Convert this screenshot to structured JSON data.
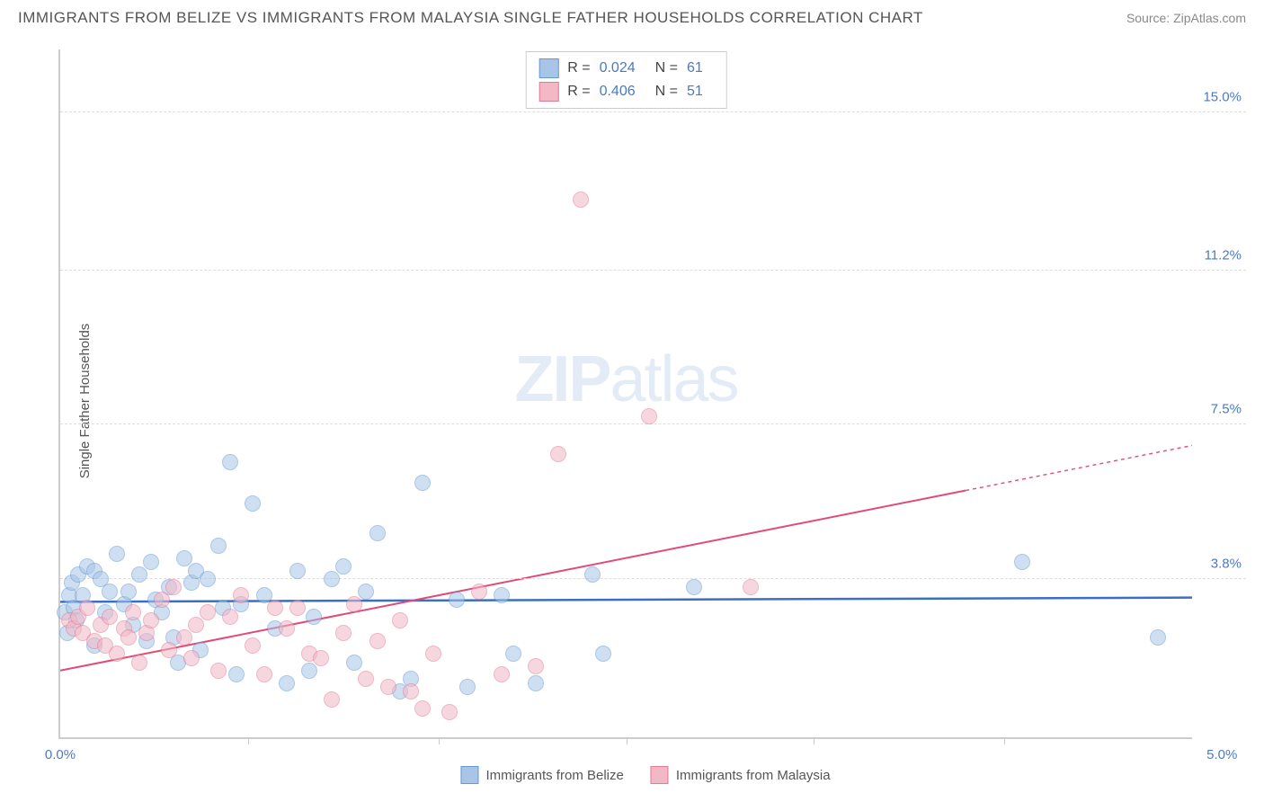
{
  "title": "IMMIGRANTS FROM BELIZE VS IMMIGRANTS FROM MALAYSIA SINGLE FATHER HOUSEHOLDS CORRELATION CHART",
  "source": "Source: ZipAtlas.com",
  "y_axis_label": "Single Father Households",
  "watermark_bold": "ZIP",
  "watermark_light": "atlas",
  "chart": {
    "type": "scatter",
    "background_color": "#ffffff",
    "grid_color": "#dddddd",
    "axis_color": "#cccccc",
    "x_domain": [
      0,
      5.0
    ],
    "y_domain": [
      0,
      16.5
    ],
    "y_ticks": [
      {
        "value": 3.8,
        "label": "3.8%",
        "color": "#4a7ac5"
      },
      {
        "value": 7.5,
        "label": "7.5%",
        "color": "#4a7ac5"
      },
      {
        "value": 11.2,
        "label": "11.2%",
        "color": "#4a7ac5"
      },
      {
        "value": 15.0,
        "label": "15.0%",
        "color": "#4a7ac5"
      }
    ],
    "x_ticks": [
      0.83,
      1.67,
      2.5,
      3.33,
      4.17
    ],
    "x_label_left": {
      "text": "0.0%",
      "color": "#4a7ac5"
    },
    "x_label_right": {
      "text": "5.0%",
      "color": "#4a7ac5"
    },
    "series": [
      {
        "name": "Immigrants from Belize",
        "fill": "#a8c5e8",
        "stroke": "#6799d0",
        "fill_opacity": 0.55,
        "marker_radius": 9,
        "r": "0.024",
        "n": "61",
        "trend": {
          "y_at_x0": 3.25,
          "y_at_xmax": 3.35,
          "color": "#3b6fc4",
          "width": 2.5,
          "extrapolate_from_x": 5.0
        },
        "points": [
          [
            0.02,
            3.0
          ],
          [
            0.04,
            3.4
          ],
          [
            0.05,
            3.7
          ],
          [
            0.06,
            3.1
          ],
          [
            0.08,
            3.9
          ],
          [
            0.1,
            3.4
          ],
          [
            0.12,
            4.1
          ],
          [
            0.03,
            2.5
          ],
          [
            0.15,
            2.2
          ],
          [
            0.15,
            4.0
          ],
          [
            0.18,
            3.8
          ],
          [
            0.2,
            3.0
          ],
          [
            0.22,
            3.5
          ],
          [
            0.25,
            4.4
          ],
          [
            0.28,
            3.2
          ],
          [
            0.3,
            3.5
          ],
          [
            0.32,
            2.7
          ],
          [
            0.35,
            3.9
          ],
          [
            0.38,
            2.3
          ],
          [
            0.4,
            4.2
          ],
          [
            0.42,
            3.3
          ],
          [
            0.45,
            3.0
          ],
          [
            0.48,
            3.6
          ],
          [
            0.5,
            2.4
          ],
          [
            0.52,
            1.8
          ],
          [
            0.55,
            4.3
          ],
          [
            0.58,
            3.7
          ],
          [
            0.6,
            4.0
          ],
          [
            0.62,
            2.1
          ],
          [
            0.65,
            3.8
          ],
          [
            0.7,
            4.6
          ],
          [
            0.72,
            3.1
          ],
          [
            0.75,
            6.6
          ],
          [
            0.78,
            1.5
          ],
          [
            0.8,
            3.2
          ],
          [
            0.85,
            5.6
          ],
          [
            0.9,
            3.4
          ],
          [
            0.95,
            2.6
          ],
          [
            1.0,
            1.3
          ],
          [
            1.05,
            4.0
          ],
          [
            1.1,
            1.6
          ],
          [
            1.12,
            2.9
          ],
          [
            1.2,
            3.8
          ],
          [
            1.25,
            4.1
          ],
          [
            1.3,
            1.8
          ],
          [
            1.35,
            3.5
          ],
          [
            1.4,
            4.9
          ],
          [
            1.5,
            1.1
          ],
          [
            1.55,
            1.4
          ],
          [
            1.6,
            6.1
          ],
          [
            1.75,
            3.3
          ],
          [
            1.8,
            1.2
          ],
          [
            1.95,
            3.4
          ],
          [
            2.0,
            2.0
          ],
          [
            2.1,
            1.3
          ],
          [
            2.35,
            3.9
          ],
          [
            2.4,
            2.0
          ],
          [
            2.8,
            3.6
          ],
          [
            4.25,
            4.2
          ],
          [
            4.85,
            2.4
          ],
          [
            0.07,
            2.8
          ]
        ]
      },
      {
        "name": "Immigrants from Malaysia",
        "fill": "#f2b8c5",
        "stroke": "#e37a95",
        "fill_opacity": 0.55,
        "marker_radius": 9,
        "r": "0.406",
        "n": "51",
        "trend": {
          "y_at_x0": 1.6,
          "y_at_xmax": 7.0,
          "color": "#e04b77",
          "width": 2,
          "extrapolate_from_x": 4.0
        },
        "points": [
          [
            0.04,
            2.8
          ],
          [
            0.06,
            2.6
          ],
          [
            0.08,
            2.9
          ],
          [
            0.1,
            2.5
          ],
          [
            0.12,
            3.1
          ],
          [
            0.15,
            2.3
          ],
          [
            0.18,
            2.7
          ],
          [
            0.2,
            2.2
          ],
          [
            0.22,
            2.9
          ],
          [
            0.25,
            2.0
          ],
          [
            0.28,
            2.6
          ],
          [
            0.3,
            2.4
          ],
          [
            0.32,
            3.0
          ],
          [
            0.35,
            1.8
          ],
          [
            0.38,
            2.5
          ],
          [
            0.4,
            2.8
          ],
          [
            0.45,
            3.3
          ],
          [
            0.48,
            2.1
          ],
          [
            0.5,
            3.6
          ],
          [
            0.55,
            2.4
          ],
          [
            0.58,
            1.9
          ],
          [
            0.6,
            2.7
          ],
          [
            0.65,
            3.0
          ],
          [
            0.7,
            1.6
          ],
          [
            0.75,
            2.9
          ],
          [
            0.8,
            3.4
          ],
          [
            0.85,
            2.2
          ],
          [
            0.9,
            1.5
          ],
          [
            0.95,
            3.1
          ],
          [
            1.0,
            2.6
          ],
          [
            1.05,
            3.1
          ],
          [
            1.1,
            2.0
          ],
          [
            1.15,
            1.9
          ],
          [
            1.2,
            0.9
          ],
          [
            1.25,
            2.5
          ],
          [
            1.3,
            3.2
          ],
          [
            1.35,
            1.4
          ],
          [
            1.4,
            2.3
          ],
          [
            1.45,
            1.2
          ],
          [
            1.5,
            2.8
          ],
          [
            1.55,
            1.1
          ],
          [
            1.6,
            0.7
          ],
          [
            1.65,
            2.0
          ],
          [
            1.72,
            0.6
          ],
          [
            1.85,
            3.5
          ],
          [
            1.95,
            1.5
          ],
          [
            2.1,
            1.7
          ],
          [
            2.2,
            6.8
          ],
          [
            2.3,
            12.9
          ],
          [
            2.6,
            7.7
          ],
          [
            3.05,
            3.6
          ]
        ]
      }
    ],
    "legend_series": [
      {
        "label": "Immigrants from Belize",
        "fill": "#a8c5e8",
        "stroke": "#6799d0"
      },
      {
        "label": "Immigrants from Malaysia",
        "fill": "#f2b8c5",
        "stroke": "#e37a95"
      }
    ]
  }
}
